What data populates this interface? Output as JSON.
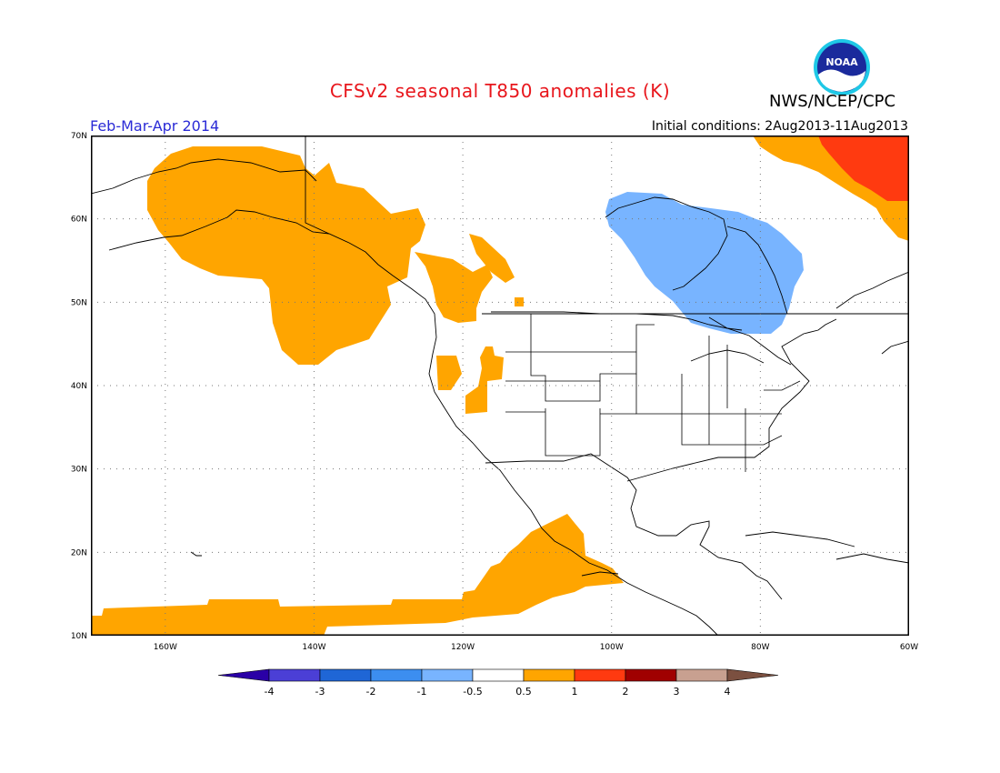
{
  "header": {
    "title": "CFSv2 seasonal T850 anomalies (K)",
    "agency": "NWS/NCEP/CPC",
    "period": "Feb-Mar-Apr 2014",
    "initial_conditions": "Initial conditions: 2Aug2013-11Aug2013",
    "logo_text": "NOAA"
  },
  "map": {
    "extent": {
      "lon_min": -170,
      "lon_max": -60,
      "lat_min": 10,
      "lat_max": 70
    },
    "lat_labels": [
      "70N",
      "60N",
      "50N",
      "40N",
      "30N",
      "20N",
      "10N"
    ],
    "lon_labels": [
      "160W",
      "140W",
      "120W",
      "100W",
      "80W",
      "60W"
    ],
    "anomaly_regions": [
      {
        "name": "alaska-gulf-warm",
        "category": "0.5 to 1",
        "color": "#ffa500"
      },
      {
        "name": "pacific-northwest-warm",
        "category": "0.5 to 1",
        "color": "#ffa500"
      },
      {
        "name": "great-basin-warm",
        "category": "0.5 to 1",
        "color": "#ffa500"
      },
      {
        "name": "tropical-pacific-warm",
        "category": "0.5 to 1",
        "color": "#ffa500"
      },
      {
        "name": "hudson-bay-cold",
        "category": "-1 to -0.5",
        "color": "#78b4ff"
      },
      {
        "name": "labrador-warm",
        "category": "0.5 to 1",
        "color": "#ffa500"
      },
      {
        "name": "baffin-strong-warm",
        "category": "1 to 2",
        "color": "#ff3a10"
      }
    ]
  },
  "colorbar": {
    "labels": [
      "-4",
      "-3",
      "-2",
      "-1",
      "-0.5",
      "0.5",
      "1",
      "2",
      "3",
      "4"
    ],
    "colors": [
      "#2a00a6",
      "#4b3fd6",
      "#1f66d6",
      "#3c8ef0",
      "#78b4ff",
      "#ffffff",
      "#ffa500",
      "#ff3a10",
      "#a00000",
      "#c8a090",
      "#7b5040"
    ]
  }
}
